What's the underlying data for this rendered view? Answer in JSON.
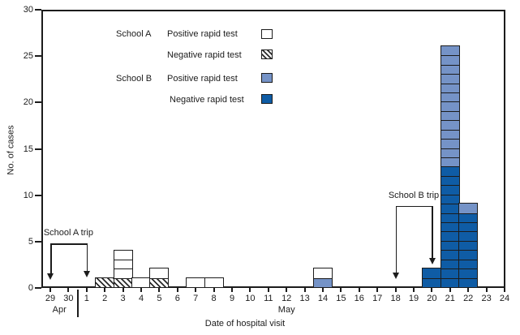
{
  "figure": {
    "y_axis_label": "No. of cases",
    "x_axis_label": "Date of hospital visit"
  },
  "legend": {
    "school_a_name": "School A",
    "school_b_name": "School B",
    "a_positive_label": "Positive rapid test",
    "a_negative_label": "Negative rapid test",
    "b_positive_label": "Positive rapid test",
    "b_negative_label": "Negative rapid test"
  },
  "colors": {
    "school_b_positive": "#7593c7",
    "school_b_negative": "#0f5ca5",
    "line_black": "#1c1c1c"
  },
  "chart_data": {
    "type": "bar",
    "stacked": true,
    "title": "",
    "xlabel": "Date of hospital visit",
    "ylabel": "No. of cases",
    "ylim": [
      0,
      30
    ],
    "yticks": [
      0,
      5,
      10,
      15,
      20,
      25,
      30
    ],
    "grid": false,
    "categories": [
      "29",
      "30",
      "1",
      "2",
      "3",
      "4",
      "5",
      "6",
      "7",
      "8",
      "9",
      "10",
      "11",
      "12",
      "13",
      "14",
      "15",
      "16",
      "17",
      "18",
      "19",
      "20",
      "21",
      "22",
      "23",
      "24"
    ],
    "month_labels": [
      {
        "label": "Apr",
        "index": 0.5
      },
      {
        "label": "May",
        "index": 13
      }
    ],
    "month_separator_index": 1.5,
    "series_legend": [
      {
        "key": "school_a_positive",
        "group": "School A",
        "label": "Positive rapid test",
        "swatch": "white"
      },
      {
        "key": "school_a_negative",
        "group": "School A",
        "label": "Negative rapid test",
        "swatch": "hatched"
      },
      {
        "key": "school_b_positive",
        "group": "School B",
        "label": "Positive rapid test",
        "swatch": "light_blue"
      },
      {
        "key": "school_b_negative",
        "group": "School B",
        "label": "Negative rapid test",
        "swatch": "dark_blue"
      }
    ],
    "bars": [
      {
        "index": 3,
        "date": "2",
        "segments": [
          {
            "series": "school_a_negative",
            "count": 1
          }
        ]
      },
      {
        "index": 4,
        "date": "3",
        "segments": [
          {
            "series": "school_a_negative",
            "count": 1
          },
          {
            "series": "school_a_positive",
            "count": 3
          }
        ]
      },
      {
        "index": 5,
        "date": "4",
        "segments": [
          {
            "series": "school_a_positive",
            "count": 1
          }
        ]
      },
      {
        "index": 6,
        "date": "5",
        "segments": [
          {
            "series": "school_a_negative",
            "count": 1
          },
          {
            "series": "school_a_positive",
            "count": 1
          }
        ]
      },
      {
        "index": 8,
        "date": "7",
        "segments": [
          {
            "series": "school_a_positive",
            "count": 1
          }
        ]
      },
      {
        "index": 9,
        "date": "8",
        "segments": [
          {
            "series": "school_a_positive",
            "count": 1
          }
        ]
      },
      {
        "index": 15,
        "date": "14",
        "segments": [
          {
            "series": "school_b_positive",
            "count": 1
          },
          {
            "series": "school_a_positive",
            "count": 1
          }
        ]
      },
      {
        "index": 21,
        "date": "20",
        "segments": [
          {
            "series": "school_b_negative",
            "count": 2
          }
        ]
      },
      {
        "index": 22,
        "date": "21",
        "segments": [
          {
            "series": "school_b_negative",
            "count": 13
          },
          {
            "series": "school_b_positive",
            "count": 13
          }
        ]
      },
      {
        "index": 23,
        "date": "22",
        "segments": [
          {
            "series": "school_b_negative",
            "count": 8
          },
          {
            "series": "school_b_positive",
            "count": 1
          }
        ]
      }
    ],
    "annotations": [
      {
        "label": "School A trip",
        "x1_index": 0,
        "x2_index": 2,
        "bracket_value": 4.8,
        "tip1_value": 0.85,
        "tip2_value": 1.1
      },
      {
        "label": "School B trip",
        "x1_index": 19,
        "x2_index": 21,
        "bracket_value": 8.85,
        "tip1_value": 1.0,
        "tip2_value": 2.55
      }
    ]
  }
}
